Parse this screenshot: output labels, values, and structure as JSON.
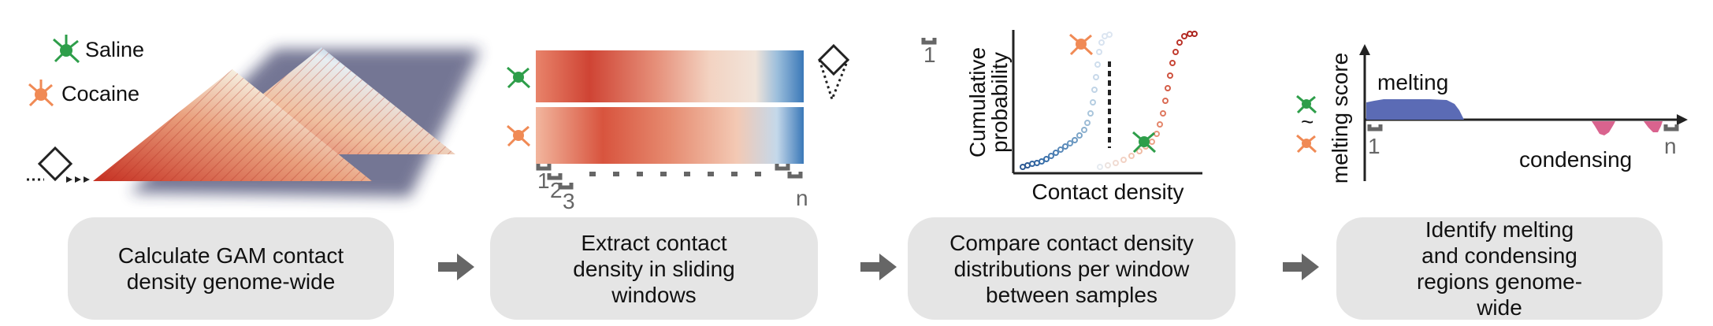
{
  "legend": {
    "saline": "Saline",
    "cocaine": "Cocaine"
  },
  "colors": {
    "saline_neuron": "#2e9e4a",
    "cocaine_neuron": "#f08a55",
    "heat_high": "#c63022",
    "heat_mid": "#f6efe0",
    "heat_low": "#3a78b8",
    "melting": "#5b6bb5",
    "condensing": "#d9638e",
    "step_box": "#e5e5e5",
    "arrow": "#666666"
  },
  "steps": [
    {
      "label": "Calculate GAM contact density genome-wide"
    },
    {
      "label": "Extract contact density in sliding windows"
    },
    {
      "label": "Compare contact density distributions per window between samples"
    },
    {
      "label": "Identify melting and condensing regions genome-wide"
    }
  ],
  "panel2": {
    "window_labels": [
      "1",
      "2",
      "3",
      "n"
    ]
  },
  "panel3": {
    "ylabel_line1": "Cumulative",
    "ylabel_line2": "probability",
    "xlabel": "Contact density",
    "window_label": "1"
  },
  "panel4": {
    "ylabel": "melting score",
    "melting_label": "melting",
    "condensing_label": "condensing",
    "start_label": "1",
    "end_label": "n",
    "tilde": "~"
  }
}
